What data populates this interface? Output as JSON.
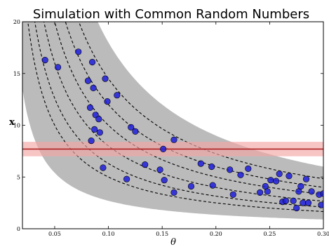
{
  "chart_data": {
    "type": "scatter",
    "title": "Simulation with Common Random Numbers",
    "xlabel": "θ",
    "ylabel": "x",
    "xlim": [
      0.02,
      0.3
    ],
    "ylim": [
      0,
      20
    ],
    "xticks": [
      0.05,
      0.1,
      0.15,
      0.2,
      0.25,
      0.3
    ],
    "xtick_labels": [
      "0.05",
      "0.10",
      "0.15",
      "0.20",
      "0.25",
      "0.30"
    ],
    "yticks": [
      0,
      5,
      10,
      15,
      20
    ],
    "ytick_labels": [
      "0",
      "5",
      "10",
      "15",
      "20"
    ],
    "grid": false,
    "band": {
      "fill": "#bbbbbb",
      "coef_low": 0.27,
      "coef_high": 1.8
    },
    "curves": {
      "coefficients": [
        0.5,
        0.63,
        0.8,
        1.0,
        1.2,
        1.45
      ],
      "color": "#000000",
      "style": "dashed"
    },
    "hline": {
      "y": 7.7,
      "band_low": 7.0,
      "band_high": 8.4,
      "line_color": "#b02020",
      "band_color": "#f4a6a6"
    },
    "points_color": "#1f1fdc",
    "points": [
      {
        "x": 0.041,
        "y": 16.3
      },
      {
        "x": 0.053,
        "y": 15.6
      },
      {
        "x": 0.072,
        "y": 17.1
      },
      {
        "x": 0.085,
        "y": 16.1
      },
      {
        "x": 0.097,
        "y": 14.5
      },
      {
        "x": 0.081,
        "y": 14.3
      },
      {
        "x": 0.086,
        "y": 13.6
      },
      {
        "x": 0.108,
        "y": 12.9
      },
      {
        "x": 0.099,
        "y": 12.3
      },
      {
        "x": 0.083,
        "y": 11.7
      },
      {
        "x": 0.088,
        "y": 11.0
      },
      {
        "x": 0.091,
        "y": 10.6
      },
      {
        "x": 0.121,
        "y": 9.8
      },
      {
        "x": 0.125,
        "y": 9.4
      },
      {
        "x": 0.087,
        "y": 9.6
      },
      {
        "x": 0.092,
        "y": 9.3
      },
      {
        "x": 0.084,
        "y": 8.5
      },
      {
        "x": 0.161,
        "y": 8.6
      },
      {
        "x": 0.151,
        "y": 7.7
      },
      {
        "x": 0.095,
        "y": 5.9
      },
      {
        "x": 0.117,
        "y": 4.8
      },
      {
        "x": 0.134,
        "y": 6.2
      },
      {
        "x": 0.148,
        "y": 5.7
      },
      {
        "x": 0.152,
        "y": 4.7
      },
      {
        "x": 0.161,
        "y": 3.5
      },
      {
        "x": 0.177,
        "y": 4.1
      },
      {
        "x": 0.186,
        "y": 6.3
      },
      {
        "x": 0.196,
        "y": 6.0
      },
      {
        "x": 0.197,
        "y": 4.2
      },
      {
        "x": 0.213,
        "y": 5.7
      },
      {
        "x": 0.216,
        "y": 3.3
      },
      {
        "x": 0.223,
        "y": 5.2
      },
      {
        "x": 0.23,
        "y": 5.8
      },
      {
        "x": 0.241,
        "y": 3.5
      },
      {
        "x": 0.246,
        "y": 4.1
      },
      {
        "x": 0.248,
        "y": 3.6
      },
      {
        "x": 0.251,
        "y": 4.7
      },
      {
        "x": 0.256,
        "y": 4.6
      },
      {
        "x": 0.259,
        "y": 5.3
      },
      {
        "x": 0.262,
        "y": 2.6
      },
      {
        "x": 0.265,
        "y": 2.7
      },
      {
        "x": 0.268,
        "y": 5.1
      },
      {
        "x": 0.272,
        "y": 2.7
      },
      {
        "x": 0.275,
        "y": 2.0
      },
      {
        "x": 0.277,
        "y": 3.6
      },
      {
        "x": 0.279,
        "y": 4.1
      },
      {
        "x": 0.281,
        "y": 2.5
      },
      {
        "x": 0.284,
        "y": 4.8
      },
      {
        "x": 0.286,
        "y": 2.5
      },
      {
        "x": 0.289,
        "y": 3.6
      },
      {
        "x": 0.296,
        "y": 3.3
      },
      {
        "x": 0.298,
        "y": 2.3
      },
      {
        "x": 0.3,
        "y": 3.4
      }
    ]
  }
}
